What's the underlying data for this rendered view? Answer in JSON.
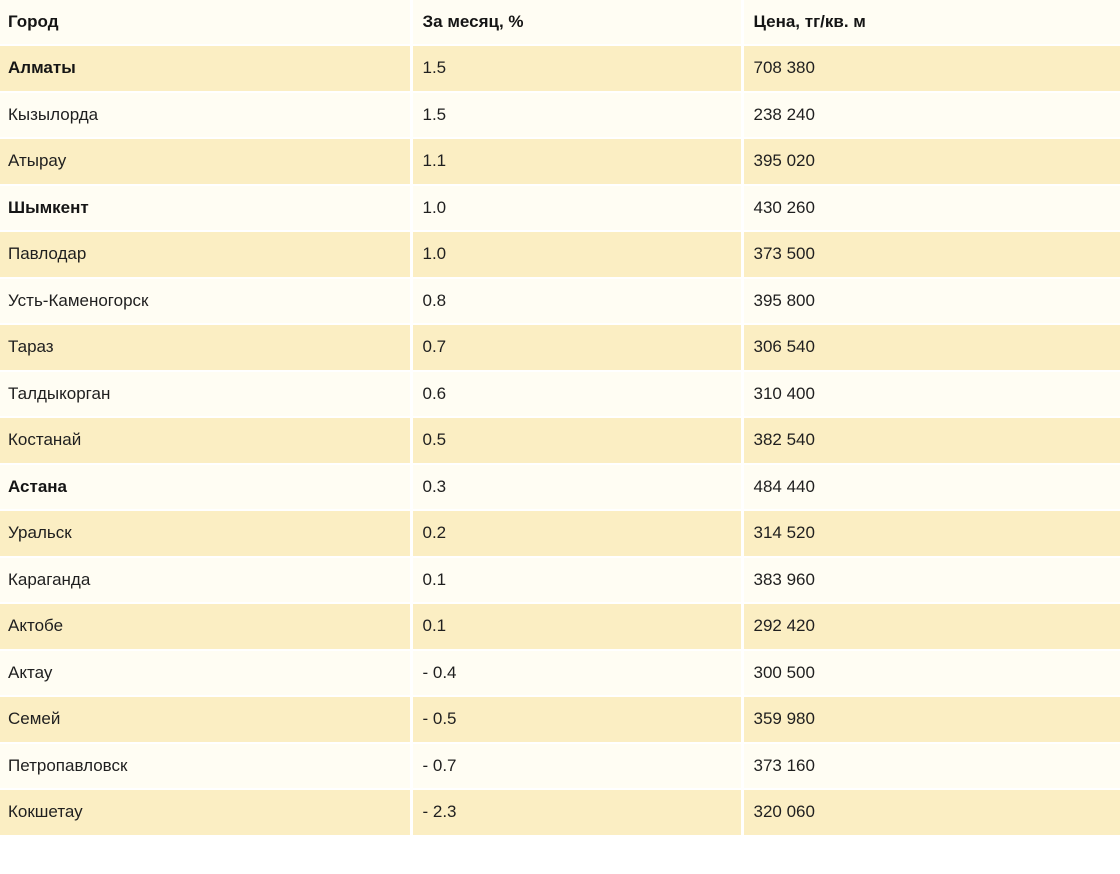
{
  "colors": {
    "row_yellow": "#FBEEC3",
    "row_light": "#FFFDF3",
    "separator": "#FFFFFF",
    "text": "#1F1F1F",
    "text_bold": "#151515"
  },
  "chart_data": {
    "type": "table",
    "columns": [
      "Город",
      "За месяц, %",
      "Цена, тг/кв. м"
    ],
    "rows": [
      {
        "city": "Алматы",
        "change": "1.5",
        "price": "708 380",
        "bold": true
      },
      {
        "city": "Кызылорда",
        "change": "1.5",
        "price": "238 240",
        "bold": false
      },
      {
        "city": "Атырау",
        "change": "1.1",
        "price": "395 020",
        "bold": false
      },
      {
        "city": "Шымкент",
        "change": "1.0",
        "price": "430 260",
        "bold": true
      },
      {
        "city": "Павлодар",
        "change": "1.0",
        "price": "373 500",
        "bold": false
      },
      {
        "city": "Усть-Каменогорск",
        "change": "0.8",
        "price": "395 800",
        "bold": false
      },
      {
        "city": "Тараз",
        "change": "0.7",
        "price": "306 540",
        "bold": false
      },
      {
        "city": "Талдыкорган",
        "change": "0.6",
        "price": "310 400",
        "bold": false
      },
      {
        "city": "Костанай",
        "change": "0.5",
        "price": "382 540",
        "bold": false
      },
      {
        "city": "Астана",
        "change": "0.3",
        "price": "484 440",
        "bold": true
      },
      {
        "city": "Уральск",
        "change": "0.2",
        "price": "314 520",
        "bold": false
      },
      {
        "city": "Караганда",
        "change": "0.1",
        "price": "383 960",
        "bold": false
      },
      {
        "city": "Актобе",
        "change": "0.1",
        "price": "292 420",
        "bold": false
      },
      {
        "city": "Актау",
        "change": "- 0.4",
        "price": "300 500",
        "bold": false
      },
      {
        "city": "Семей",
        "change": "- 0.5",
        "price": "359 980",
        "bold": false
      },
      {
        "city": "Петропавловск",
        "change": "- 0.7",
        "price": "373 160",
        "bold": false
      },
      {
        "city": "Кокшетау",
        "change": "- 2.3",
        "price": "320 060",
        "bold": false
      }
    ]
  }
}
